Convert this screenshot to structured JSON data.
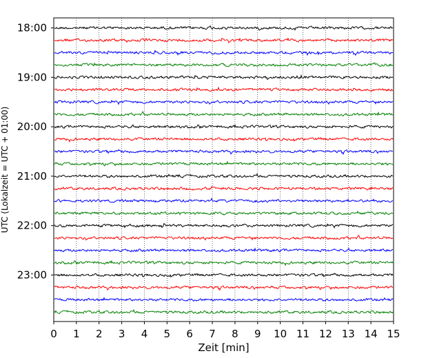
{
  "chart_data": {
    "type": "line",
    "title": "",
    "xlabel": "Zeit  [min]",
    "ylabel": "UTC (Lokalzeit = UTC + 01:00)",
    "xlim": [
      0,
      15
    ],
    "x_ticks": [
      0,
      1,
      2,
      3,
      4,
      5,
      6,
      7,
      8,
      9,
      10,
      11,
      12,
      13,
      14,
      15
    ],
    "y_tick_labels": [
      "18:00",
      "19:00",
      "20:00",
      "21:00",
      "22:00",
      "23:00"
    ],
    "grid": "vertical dotted at each minute",
    "trace_colors": [
      "#000000",
      "#ff0000",
      "#0000ff",
      "#008000"
    ],
    "traces": [
      {
        "start": "18:00",
        "color": "#000000"
      },
      {
        "start": "18:15",
        "color": "#ff0000"
      },
      {
        "start": "18:30",
        "color": "#0000ff"
      },
      {
        "start": "18:45",
        "color": "#008000"
      },
      {
        "start": "19:00",
        "color": "#000000"
      },
      {
        "start": "19:15",
        "color": "#ff0000"
      },
      {
        "start": "19:30",
        "color": "#0000ff"
      },
      {
        "start": "19:45",
        "color": "#008000"
      },
      {
        "start": "20:00",
        "color": "#000000"
      },
      {
        "start": "20:15",
        "color": "#ff0000"
      },
      {
        "start": "20:30",
        "color": "#0000ff"
      },
      {
        "start": "20:45",
        "color": "#008000"
      },
      {
        "start": "21:00",
        "color": "#000000"
      },
      {
        "start": "21:15",
        "color": "#ff0000"
      },
      {
        "start": "21:30",
        "color": "#0000ff"
      },
      {
        "start": "21:45",
        "color": "#008000"
      },
      {
        "start": "22:00",
        "color": "#000000"
      },
      {
        "start": "22:15",
        "color": "#ff0000"
      },
      {
        "start": "22:30",
        "color": "#0000ff"
      },
      {
        "start": "22:45",
        "color": "#008000"
      },
      {
        "start": "23:00",
        "color": "#000000"
      },
      {
        "start": "23:15",
        "color": "#ff0000"
      },
      {
        "start": "23:30",
        "color": "#0000ff"
      },
      {
        "start": "23:45",
        "color": "#008000"
      }
    ]
  }
}
